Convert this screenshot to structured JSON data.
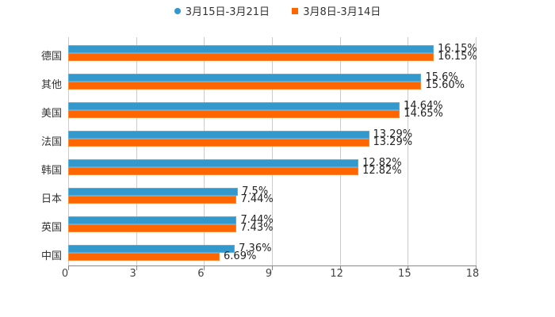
{
  "chart_data": {
    "type": "bar",
    "orientation": "horizontal",
    "title": "",
    "xlabel": "",
    "ylabel": "",
    "xlim": [
      0,
      18
    ],
    "x_ticks": [
      "0",
      "3",
      "6",
      "9",
      "12",
      "15",
      "18"
    ],
    "grid": true,
    "legend_position": "top",
    "categories": [
      "德国",
      "其他",
      "美国",
      "法国",
      "韩国",
      "日本",
      "英国",
      "中国"
    ],
    "series": [
      {
        "name": "3月15日-3月21日",
        "color": "#3399cc",
        "values": [
          16.15,
          15.6,
          14.64,
          13.29,
          12.82,
          7.5,
          7.44,
          7.36
        ],
        "labels": [
          "16.15%",
          "15.6%",
          "14.64%",
          "13.29%",
          "12.82%",
          "7.5%",
          "7.44%",
          "7.36%"
        ]
      },
      {
        "name": "3月8日-3月14日",
        "color": "#ff6600",
        "values": [
          16.15,
          15.6,
          14.65,
          13.29,
          12.82,
          7.44,
          7.43,
          6.69
        ],
        "labels": [
          "16.15%",
          "15.60%",
          "14.65%",
          "13.29%",
          "12.82%",
          "7.44%",
          "7.43%",
          "6.69%"
        ]
      }
    ]
  },
  "legend": {
    "items": [
      {
        "label": "3月15日-3月21日",
        "color": "#3399cc",
        "marker": "circle"
      },
      {
        "label": "3月8日-3月14日",
        "color": "#ff6600",
        "marker": "square"
      }
    ]
  }
}
